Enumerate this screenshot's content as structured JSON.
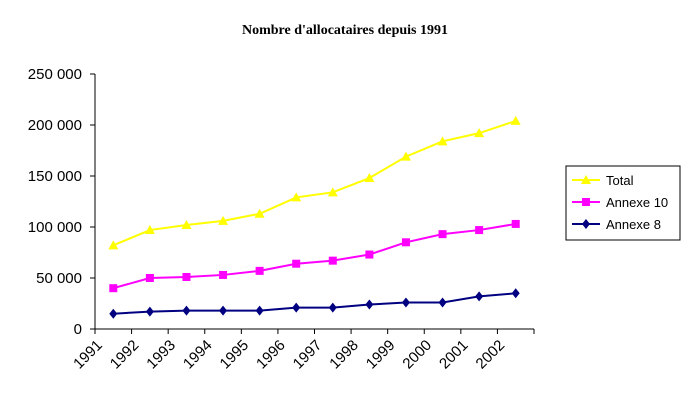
{
  "chart_data": {
    "type": "line",
    "title": "Nombre d'allocataires depuis 1991",
    "categories": [
      "1991",
      "1992",
      "1993",
      "1994",
      "1995",
      "1996",
      "1997",
      "1998",
      "1999",
      "2000",
      "2001",
      "2002"
    ],
    "yticks": [
      "0",
      "50 000",
      "100 000",
      "150 000",
      "200 000",
      "250 000"
    ],
    "ylim": [
      0,
      250000
    ],
    "grid": false,
    "legend_position": "right",
    "series": [
      {
        "name": "Total",
        "color": "#ffff00",
        "marker": "triangle",
        "values": [
          82000,
          97000,
          102000,
          106000,
          113000,
          129000,
          134000,
          148000,
          169000,
          184000,
          192000,
          204000
        ]
      },
      {
        "name": "Annexe 10",
        "color": "#ff00ff",
        "marker": "square",
        "values": [
          40000,
          50000,
          51000,
          53000,
          57000,
          64000,
          67000,
          73000,
          85000,
          93000,
          97000,
          103000
        ]
      },
      {
        "name": "Annexe 8",
        "color": "#000080",
        "marker": "diamond",
        "values": [
          15000,
          17000,
          18000,
          18000,
          18000,
          21000,
          21000,
          24000,
          26000,
          26000,
          32000,
          35000
        ]
      }
    ]
  }
}
